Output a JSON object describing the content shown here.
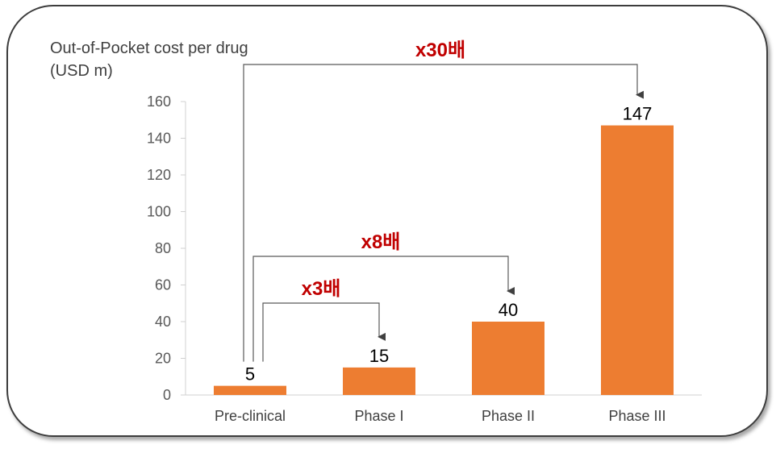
{
  "chart_data": {
    "type": "bar",
    "ylabel_line1": "Out-of-Pocket cost per drug",
    "ylabel_line2": "(USD m)",
    "categories": [
      "Pre-clinical",
      "Phase I",
      "Phase II",
      "Phase III"
    ],
    "values": [
      5,
      15,
      40,
      147
    ],
    "value_labels": [
      "5",
      "15",
      "40",
      "147"
    ],
    "ylim": [
      0,
      160
    ],
    "yticks": [
      0,
      20,
      40,
      60,
      80,
      100,
      120,
      140,
      160
    ],
    "bar_color": "#ED7D31",
    "annotations": [
      {
        "label": "x3배",
        "from": 0,
        "to": 1,
        "color": "#C00000"
      },
      {
        "label": "x8배",
        "from": 0,
        "to": 2,
        "color": "#C00000"
      },
      {
        "label": "x30배",
        "from": 0,
        "to": 3,
        "color": "#C00000"
      }
    ]
  }
}
